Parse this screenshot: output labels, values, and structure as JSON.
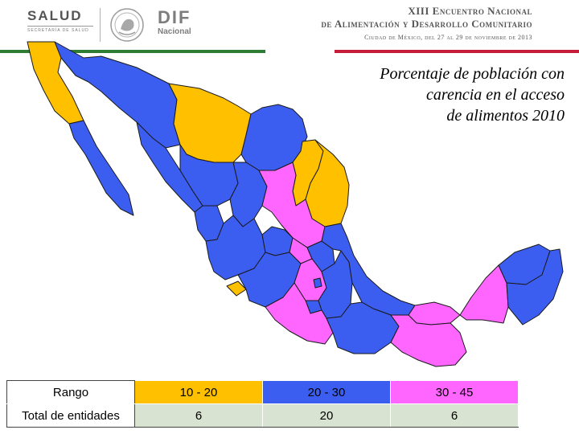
{
  "header": {
    "salud": {
      "title": "SALUD",
      "subtitle": "SECRETARÍA DE SALUD"
    },
    "dif": {
      "title": "DIF",
      "subtitle": "Nacional"
    },
    "event": {
      "line1": "XIII Encuentro Nacional",
      "line2": "de Alimentación y Desarrollo Comunitario",
      "line3": "Ciudad de México, del 27 al 29 de noviembre de 2013"
    }
  },
  "map": {
    "title_lines": [
      "Porcentaje de población con",
      "carencia en el acceso",
      "de alimentos 2010"
    ]
  },
  "legend": {
    "header_label": "Rango",
    "count_label": "Total de entidades",
    "ranges": [
      {
        "label": "10 - 20",
        "count": "6",
        "color": "#ffc000"
      },
      {
        "label": "20 - 30",
        "count": "20",
        "color": "#3c5ef0"
      },
      {
        "label": "30 - 45",
        "count": "6",
        "color": "#ff66ff"
      }
    ]
  }
}
